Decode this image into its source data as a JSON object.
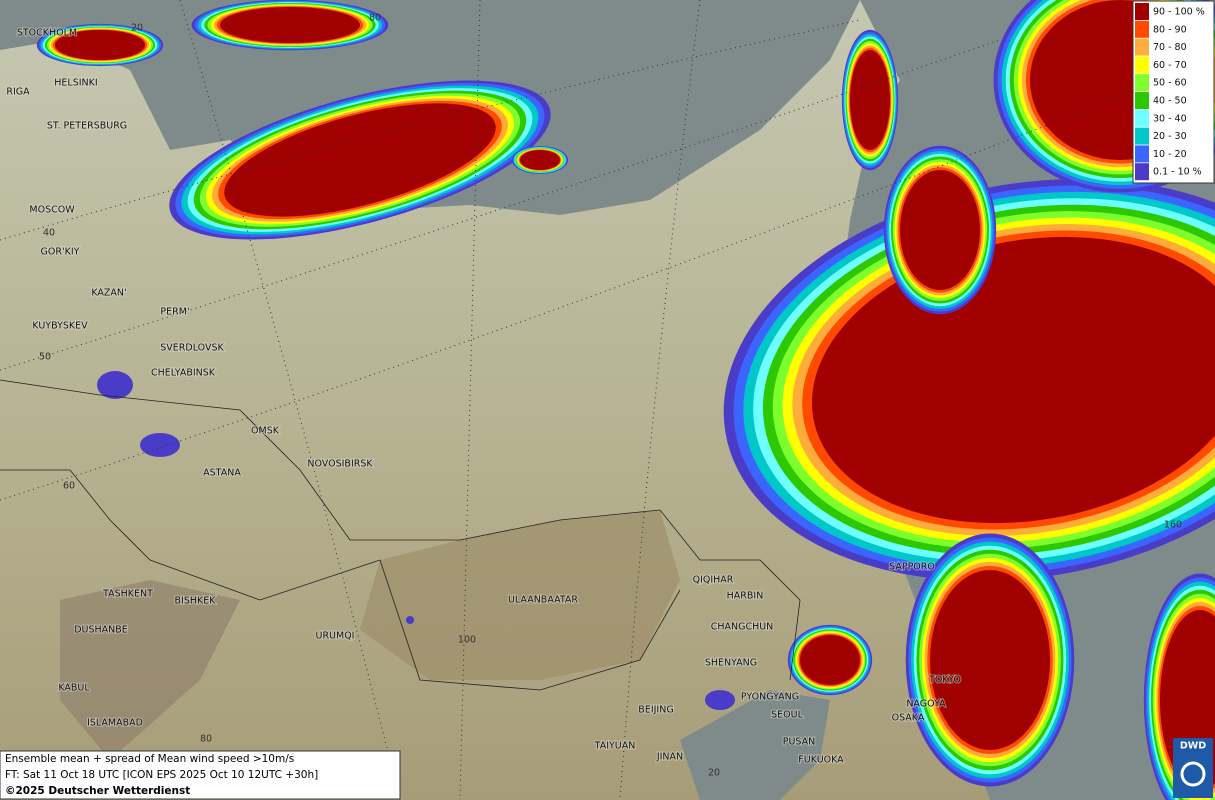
{
  "map": {
    "legend": [
      {
        "label": "90 - 100 %",
        "color": "#a00000"
      },
      {
        "label": "80 - 90",
        "color": "#ff4a00"
      },
      {
        "label": "70 - 80",
        "color": "#ffad3a"
      },
      {
        "label": "60 - 70",
        "color": "#ffff00"
      },
      {
        "label": "50 - 60",
        "color": "#7dff2e"
      },
      {
        "label": "40 - 50",
        "color": "#2ec800"
      },
      {
        "label": "30 - 40",
        "color": "#6effff"
      },
      {
        "label": "20 - 30",
        "color": "#00c8c8"
      },
      {
        "label": "10 - 20",
        "color": "#3c64ff"
      },
      {
        "label": "0.1 - 10 %",
        "color": "#4b3cc8"
      }
    ],
    "cities": [
      "STOCKHOLM",
      "HELSINKI",
      "RIGA",
      "ST. PETERSBURG",
      "MOSCOW",
      "GOR'KIY",
      "KAZAN'",
      "PERM'",
      "KUYBYSKEV",
      "SVERDLOVSK",
      "CHELYABINSK",
      "OMSK",
      "NOVOSIBIRSK",
      "ASTANA",
      "TASHKENT",
      "BISHKEK",
      "DUSHANBE",
      "URUMQI",
      "KABUL",
      "ISLAMABAD",
      "ULAANBAATAR",
      "QIQIHAR",
      "HARBIN",
      "CHANGCHUN",
      "SHENYANG",
      "PYONGYANG",
      "BEIJING",
      "SEOUL",
      "TAIYUAN",
      "PUSAN",
      "JINAN",
      "FUKUOKA",
      "SAPPORO",
      "TOKYO",
      "NAGOYA",
      "OSAKA"
    ],
    "grid_labels": [
      "20",
      "80",
      "40",
      "50",
      "60",
      "100",
      "160",
      "80",
      "20"
    ],
    "caption": [
      "Ensemble mean + spread of Mean wind speed >10m/s",
      "FT: Sat 11 Oct 18 UTC [ICON EPS 2025 Oct 10 12UTC +30h]",
      "©2025 Deutscher Wetterdienst"
    ],
    "logo": "DWD"
  }
}
